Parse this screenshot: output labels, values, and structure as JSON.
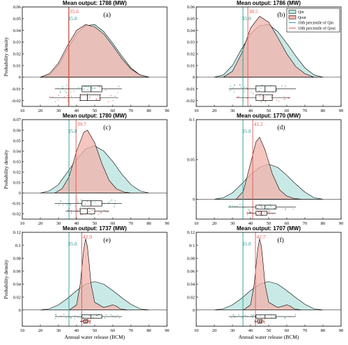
{
  "colors": {
    "qin_fill": "#b7e2dd",
    "qin_line": "#2a9d8f",
    "qout_fill": "#f2b1aa",
    "qout_line": "#e0574f",
    "alpha": 0.75
  },
  "legend": {
    "labels": [
      "Qin",
      "Qout",
      "10th percentile of Qin",
      "10th percentile of Qout"
    ],
    "placement": "top-right",
    "panel": 1
  },
  "chart_data": [
    {
      "type": "area",
      "title": "Mean output: 1788 (MW)",
      "panel_label": "(a)",
      "xlabel": "",
      "ylabel": "Probability density",
      "xlim": [
        10,
        90
      ],
      "ylim": [
        -0.025,
        0.06
      ],
      "xticks": [
        10,
        20,
        30,
        40,
        50,
        60,
        70,
        80,
        90
      ],
      "yticks": [
        -0.02,
        -0.01,
        0,
        0.01,
        0.02,
        0.03,
        0.04,
        0.05,
        0.06
      ],
      "ytick_labels": [
        "-0.02",
        "-0.01",
        "0",
        "0.01",
        "0.02",
        "0.03",
        "0.04",
        "0.05",
        "0.06"
      ],
      "p10_qin": 35.8,
      "p10_qout": 35.6,
      "p10_qin_label": "35.8",
      "p10_qout_label": "35.6",
      "series": [
        {
          "name": "Qin",
          "x": [
            20,
            25,
            30,
            35,
            40,
            45,
            50,
            55,
            60,
            65,
            70,
            75,
            80
          ],
          "y": [
            0.0,
            0.002,
            0.01,
            0.024,
            0.037,
            0.044,
            0.045,
            0.039,
            0.029,
            0.018,
            0.008,
            0.002,
            0.0
          ]
        },
        {
          "name": "Qout",
          "x": [
            20,
            25,
            30,
            35,
            40,
            45,
            50,
            55,
            60,
            65,
            70,
            75,
            80
          ],
          "y": [
            0.0,
            0.003,
            0.012,
            0.027,
            0.04,
            0.045,
            0.043,
            0.037,
            0.027,
            0.016,
            0.007,
            0.002,
            0.0
          ]
        }
      ],
      "boxplots": {
        "Qin": {
          "min": 28,
          "q1": 43,
          "median": 48,
          "q3": 54,
          "max": 65
        },
        "Qout": {
          "min": 25,
          "q1": 42,
          "median": 46,
          "q3": 53,
          "max": 63
        }
      }
    },
    {
      "type": "area",
      "title": "Mean output: 1786 (MW)",
      "panel_label": "(b)",
      "xlabel": "",
      "ylabel": "",
      "xlim": [
        10,
        90
      ],
      "ylim": [
        -0.025,
        0.06
      ],
      "xticks": [
        10,
        20,
        30,
        40,
        50,
        60,
        70,
        80,
        90
      ],
      "yticks": [
        -0.02,
        -0.01,
        0,
        0.01,
        0.02,
        0.03,
        0.04,
        0.05,
        0.06
      ],
      "ytick_labels": [
        "-0.02",
        "-0.01",
        "0",
        "0.01",
        "0.02",
        "0.03",
        "0.04",
        "0.05",
        "0.06"
      ],
      "p10_qin": 35.8,
      "p10_qout": 38.5,
      "p10_qin_label": "35.8",
      "p10_qout_label": "38.5",
      "series": [
        {
          "name": "Qin",
          "x": [
            20,
            25,
            30,
            35,
            40,
            45,
            50,
            55,
            60,
            65,
            70,
            75,
            80
          ],
          "y": [
            0.0,
            0.002,
            0.01,
            0.024,
            0.037,
            0.044,
            0.045,
            0.039,
            0.029,
            0.018,
            0.008,
            0.002,
            0.0
          ]
        },
        {
          "name": "Qout",
          "x": [
            25,
            30,
            35,
            40,
            45,
            50,
            55,
            60,
            65,
            70,
            75
          ],
          "y": [
            0.0,
            0.005,
            0.02,
            0.042,
            0.052,
            0.047,
            0.034,
            0.02,
            0.009,
            0.003,
            0.0
          ]
        }
      ],
      "boxplots": {
        "Qin": {
          "min": 28,
          "q1": 43,
          "median": 48,
          "q3": 54,
          "max": 65
        },
        "Qout": {
          "min": 32,
          "q1": 43,
          "median": 47,
          "q3": 52,
          "max": 62
        }
      }
    },
    {
      "type": "area",
      "title": "Mean output: 1780 (MW)",
      "panel_label": "(c)",
      "xlabel": "",
      "ylabel": "Probability density",
      "xlim": [
        10,
        90
      ],
      "ylim": [
        -0.025,
        0.07
      ],
      "xticks": [
        10,
        20,
        30,
        40,
        50,
        60,
        70,
        80,
        90
      ],
      "yticks": [
        -0.02,
        -0.01,
        0,
        0.01,
        0.02,
        0.03,
        0.04,
        0.05,
        0.06,
        0.07
      ],
      "ytick_labels": [
        "-0.02",
        "-0.01",
        "0",
        "0.01",
        "0.02",
        "0.03",
        "0.04",
        "0.05",
        "0.06",
        "0.07"
      ],
      "p10_qin": 35.8,
      "p10_qout": 39.7,
      "p10_qin_label": "35.8",
      "p10_qout_label": "39.7",
      "series": [
        {
          "name": "Qin",
          "x": [
            20,
            25,
            30,
            35,
            40,
            45,
            50,
            55,
            60,
            65,
            70,
            75,
            80
          ],
          "y": [
            0.0,
            0.002,
            0.008,
            0.02,
            0.032,
            0.042,
            0.045,
            0.04,
            0.03,
            0.018,
            0.008,
            0.002,
            0.0
          ]
        },
        {
          "name": "Qout",
          "x": [
            28,
            32,
            36,
            40,
            44,
            46,
            50,
            54,
            58,
            62,
            66,
            70
          ],
          "y": [
            0.0,
            0.004,
            0.016,
            0.04,
            0.058,
            0.06,
            0.048,
            0.028,
            0.012,
            0.004,
            0.001,
            0.0
          ]
        }
      ],
      "boxplots": {
        "Qin": {
          "min": 28,
          "q1": 43,
          "median": 48,
          "q3": 54,
          "max": 65
        },
        "Qout": {
          "min": 34,
          "q1": 42,
          "median": 46,
          "q3": 50,
          "max": 58
        }
      }
    },
    {
      "type": "area",
      "title": "Mean output: 1770 (MW)",
      "panel_label": "(d)",
      "xlabel": "",
      "ylabel": "",
      "xlim": [
        10,
        90
      ],
      "ylim": [
        -0.025,
        0.1
      ],
      "xticks": [
        10,
        20,
        30,
        40,
        50,
        60,
        70,
        80,
        90
      ],
      "yticks": [
        0,
        0.05,
        0.1
      ],
      "ytick_labels": [
        "0",
        "0.05",
        "0.1"
      ],
      "p10_qin": 35.8,
      "p10_qout": 41.2,
      "p10_qin_label": "35.8",
      "p10_qout_label": "41.2",
      "series": [
        {
          "name": "Qin",
          "x": [
            20,
            25,
            30,
            35,
            40,
            45,
            50,
            55,
            60,
            65,
            70,
            75,
            80
          ],
          "y": [
            0.0,
            0.002,
            0.008,
            0.019,
            0.031,
            0.04,
            0.044,
            0.04,
            0.03,
            0.019,
            0.009,
            0.002,
            0.0
          ]
        },
        {
          "name": "Qout",
          "x": [
            32,
            36,
            40,
            43,
            45,
            48,
            52,
            56,
            60,
            64,
            68
          ],
          "y": [
            0.0,
            0.01,
            0.045,
            0.072,
            0.078,
            0.062,
            0.032,
            0.012,
            0.004,
            0.001,
            0.0
          ]
        }
      ],
      "boxplots": {
        "Qin": {
          "min": 28,
          "q1": 43,
          "median": 48,
          "q3": 54,
          "max": 65
        },
        "Qout": {
          "min": 38,
          "q1": 43,
          "median": 46,
          "q3": 49,
          "max": 54
        }
      }
    },
    {
      "type": "area",
      "title": "Mean output: 1737 (MW)",
      "panel_label": "(e)",
      "xlabel": "Annual water release (BCM)",
      "ylabel": "Probability density",
      "xlim": [
        10,
        90
      ],
      "ylim": [
        -0.025,
        0.12
      ],
      "xticks": [
        10,
        20,
        30,
        40,
        50,
        60,
        70,
        80,
        90
      ],
      "yticks": [
        0,
        0.02,
        0.04,
        0.06,
        0.08,
        0.1,
        0.12
      ],
      "ytick_labels": [
        "0",
        "0.02",
        "0.04",
        "0.06",
        "0.08",
        "0.1",
        "0.12"
      ],
      "p10_qin": 35.8,
      "p10_qout": 42.9,
      "p10_qin_label": "35.8",
      "p10_qout_label": "42.9",
      "series": [
        {
          "name": "Qin",
          "x": [
            20,
            25,
            30,
            35,
            40,
            45,
            50,
            55,
            60,
            65,
            70,
            75,
            80
          ],
          "y": [
            0.0,
            0.002,
            0.008,
            0.018,
            0.03,
            0.04,
            0.044,
            0.04,
            0.03,
            0.019,
            0.009,
            0.002,
            0.0
          ]
        },
        {
          "name": "Qout",
          "x": [
            36,
            40,
            42,
            44,
            45,
            46,
            47,
            48,
            50,
            55,
            60,
            62,
            64,
            68
          ],
          "y": [
            0.0,
            0.008,
            0.04,
            0.095,
            0.11,
            0.098,
            0.07,
            0.04,
            0.012,
            0.004,
            0.008,
            0.006,
            0.002,
            0.0
          ]
        }
      ],
      "boxplots": {
        "Qin": {
          "min": 28,
          "q1": 43,
          "median": 48,
          "q3": 54,
          "max": 65
        },
        "Qout": {
          "min": 42,
          "q1": 44,
          "median": 45,
          "q3": 46,
          "max": 48
        }
      }
    },
    {
      "type": "area",
      "title": "Mean output: 1707 (MW)",
      "panel_label": "(f)",
      "xlabel": "Annual water release (BCM)",
      "ylabel": "",
      "xlim": [
        10,
        90
      ],
      "ylim": [
        -0.025,
        0.12
      ],
      "xticks": [
        10,
        20,
        30,
        40,
        50,
        60,
        70,
        80,
        90
      ],
      "yticks": [
        0,
        0.02,
        0.04,
        0.06,
        0.08,
        0.1,
        0.12
      ],
      "ytick_labels": [
        "0",
        "0.02",
        "0.04",
        "0.06",
        "0.08",
        "0.1",
        "0.12"
      ],
      "p10_qin": 35.8,
      "p10_qout": 42.7,
      "p10_qin_label": "35.8",
      "p10_qout_label": "42.7",
      "series": [
        {
          "name": "Qin",
          "x": [
            20,
            25,
            30,
            35,
            40,
            45,
            50,
            55,
            60,
            65,
            70,
            75,
            80
          ],
          "y": [
            0.0,
            0.002,
            0.008,
            0.018,
            0.03,
            0.04,
            0.044,
            0.04,
            0.03,
            0.019,
            0.009,
            0.002,
            0.0
          ]
        },
        {
          "name": "Qout",
          "x": [
            36,
            40,
            42,
            44,
            45,
            46,
            47,
            48,
            50,
            55,
            60,
            62,
            64,
            68
          ],
          "y": [
            0.0,
            0.008,
            0.04,
            0.095,
            0.11,
            0.098,
            0.07,
            0.04,
            0.012,
            0.004,
            0.008,
            0.006,
            0.002,
            0.0
          ]
        }
      ],
      "boxplots": {
        "Qin": {
          "min": 28,
          "q1": 43,
          "median": 48,
          "q3": 54,
          "max": 65
        },
        "Qout": {
          "min": 42,
          "q1": 44,
          "median": 45,
          "q3": 46,
          "max": 48
        }
      }
    }
  ]
}
